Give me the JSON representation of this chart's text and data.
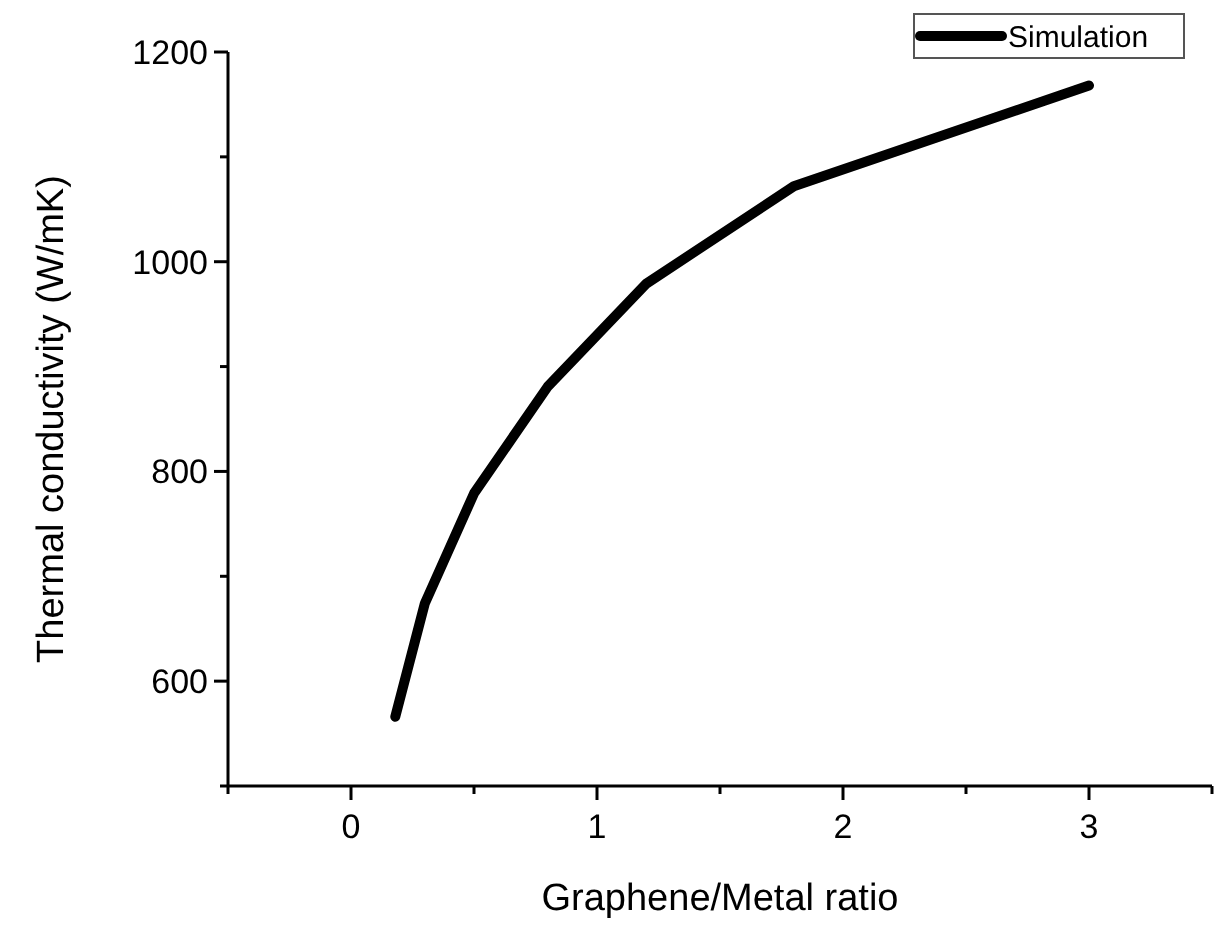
{
  "chart_data": {
    "type": "line",
    "xlabel": "Graphene/Metal ratio",
    "ylabel": "Thermal conductivity (W/mK)",
    "x": [
      0.18,
      0.3,
      0.5,
      0.8,
      1.2,
      1.8,
      3
    ],
    "series": [
      {
        "name": "Simulation",
        "color": "#000000",
        "values": [
          566,
          674,
          779,
          881,
          979,
          1072,
          1168
        ]
      }
    ],
    "xlim": [
      -0.5,
      3.5
    ],
    "xticks": [
      {
        "value": -0.5,
        "label": null
      },
      0,
      {
        "value": 0.5,
        "label": null
      },
      1,
      {
        "value": 1.5,
        "label": null
      },
      2,
      {
        "value": 2.5,
        "label": null
      },
      3,
      {
        "value": 3.5,
        "label": null
      }
    ],
    "ylim": [
      500,
      1200
    ],
    "yticks": [
      {
        "value": 500,
        "label": null
      },
      600,
      {
        "value": 700,
        "label": null
      },
      800,
      {
        "value": 900,
        "label": null
      },
      1000,
      {
        "value": 1100,
        "label": null
      },
      1200
    ],
    "grid": false,
    "legend": "top right",
    "marker": "none",
    "line_style": "solid"
  }
}
